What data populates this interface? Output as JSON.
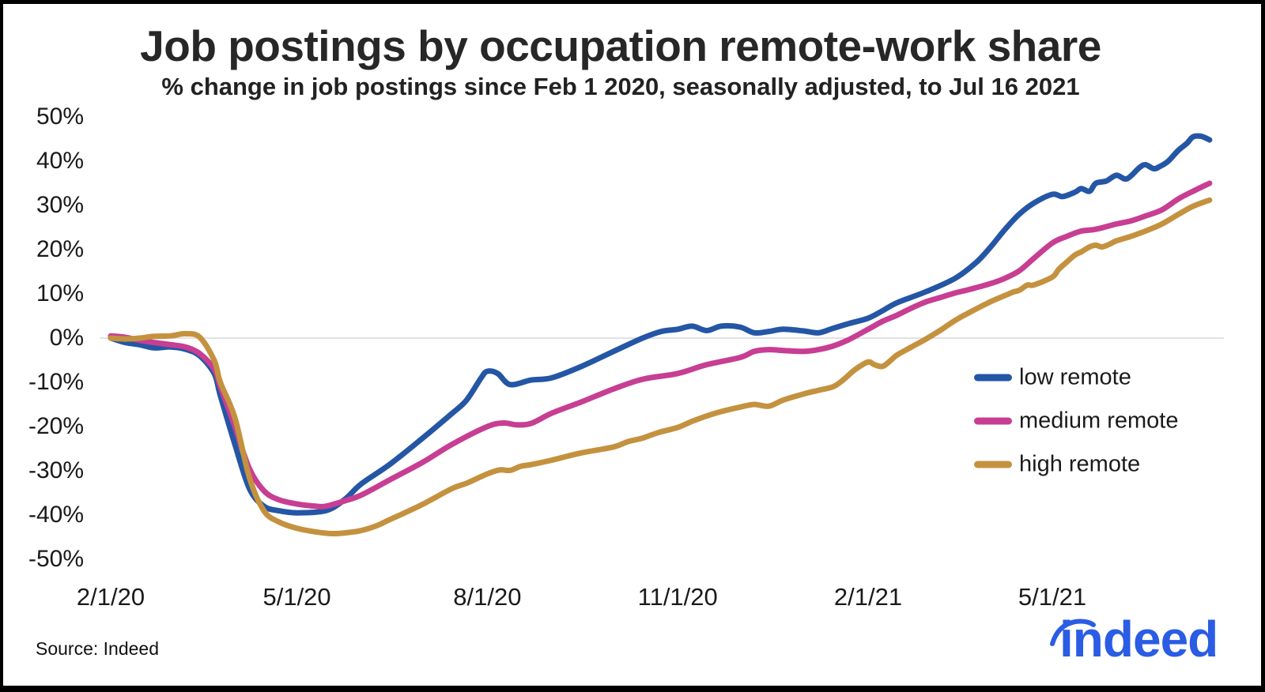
{
  "title": "Job postings by occupation remote-work share",
  "subtitle": "% change in job postings since Feb 1 2020, seasonally adjusted, to Jul 16 2021",
  "source": "Source: Indeed",
  "logo": {
    "text": "indeed",
    "color": "#2a5ce4"
  },
  "frame": {
    "border_color": "#000000",
    "background": "#ffffff"
  },
  "chart_data": {
    "type": "line",
    "title": "Job postings by occupation remote-work share",
    "subtitle": "% change in job postings since Feb 1 2020, seasonally adjusted, to Jul 16 2021",
    "x_unit": "days since Feb 1 2020",
    "xlim_days": [
      0,
      531
    ],
    "ylim": [
      -50,
      50
    ],
    "y_ticks": [
      50,
      40,
      30,
      20,
      10,
      0,
      -10,
      -20,
      -30,
      -40,
      -50
    ],
    "y_tick_suffix": "%",
    "x_ticks": [
      {
        "label": "2/1/20",
        "day": 0
      },
      {
        "label": "5/1/20",
        "day": 90
      },
      {
        "label": "8/1/20",
        "day": 182
      },
      {
        "label": "11/1/20",
        "day": 274
      },
      {
        "label": "2/1/21",
        "day": 366
      },
      {
        "label": "5/1/21",
        "day": 455
      }
    ],
    "grid": "zero-line-only",
    "zero_line_color": "#d8d8d8",
    "legend_position": "middle-right",
    "series": [
      {
        "name": "low remote",
        "color": "#2456a5",
        "points": [
          [
            0,
            0
          ],
          [
            7,
            -1
          ],
          [
            14,
            -1.5
          ],
          [
            21,
            -2.2
          ],
          [
            29,
            -2
          ],
          [
            36,
            -2.5
          ],
          [
            43,
            -4
          ],
          [
            50,
            -8
          ],
          [
            53,
            -13
          ],
          [
            60,
            -24
          ],
          [
            67,
            -34
          ],
          [
            74,
            -38
          ],
          [
            81,
            -39
          ],
          [
            90,
            -39.5
          ],
          [
            104,
            -39
          ],
          [
            113,
            -36.5
          ],
          [
            121,
            -33
          ],
          [
            135,
            -28.5
          ],
          [
            151,
            -22.5
          ],
          [
            165,
            -17
          ],
          [
            172,
            -14
          ],
          [
            179,
            -9
          ],
          [
            182,
            -7.5
          ],
          [
            187,
            -8
          ],
          [
            193,
            -10.5
          ],
          [
            203,
            -9.5
          ],
          [
            213,
            -9
          ],
          [
            227,
            -6.5
          ],
          [
            243,
            -3
          ],
          [
            257,
            0
          ],
          [
            266,
            1.5
          ],
          [
            274,
            2
          ],
          [
            281,
            2.7
          ],
          [
            288,
            1.7
          ],
          [
            295,
            2.7
          ],
          [
            304,
            2.5
          ],
          [
            311,
            1.2
          ],
          [
            318,
            1.5
          ],
          [
            325,
            2
          ],
          [
            335,
            1.6
          ],
          [
            342,
            1.2
          ],
          [
            349,
            2.2
          ],
          [
            356,
            3.2
          ],
          [
            366,
            4.5
          ],
          [
            373,
            6.2
          ],
          [
            380,
            8
          ],
          [
            394,
            10.5
          ],
          [
            408,
            13.5
          ],
          [
            418,
            17
          ],
          [
            425,
            20.5
          ],
          [
            432,
            24.5
          ],
          [
            439,
            28
          ],
          [
            446,
            30.5
          ],
          [
            455,
            32.5
          ],
          [
            460,
            32
          ],
          [
            466,
            33
          ],
          [
            469,
            33.8
          ],
          [
            473,
            33.2
          ],
          [
            476,
            35
          ],
          [
            481,
            35.5
          ],
          [
            486,
            36.8
          ],
          [
            491,
            36
          ],
          [
            497,
            38.5
          ],
          [
            500,
            39.2
          ],
          [
            504,
            38.3
          ],
          [
            507,
            38.8
          ],
          [
            511,
            40
          ],
          [
            516,
            42.5
          ],
          [
            520,
            44
          ],
          [
            523,
            45.5
          ],
          [
            527,
            45.6
          ],
          [
            531,
            44.8
          ]
        ]
      },
      {
        "name": "medium remote",
        "color": "#c73e93",
        "points": [
          [
            0,
            0.5
          ],
          [
            7,
            0.2
          ],
          [
            14,
            -0.5
          ],
          [
            21,
            -1
          ],
          [
            29,
            -1.5
          ],
          [
            36,
            -2
          ],
          [
            43,
            -3.5
          ],
          [
            50,
            -7
          ],
          [
            53,
            -11
          ],
          [
            60,
            -20
          ],
          [
            67,
            -29.5
          ],
          [
            74,
            -34.5
          ],
          [
            81,
            -36.5
          ],
          [
            90,
            -37.5
          ],
          [
            99,
            -38
          ],
          [
            104,
            -38
          ],
          [
            113,
            -36.8
          ],
          [
            121,
            -35.5
          ],
          [
            135,
            -32
          ],
          [
            151,
            -28
          ],
          [
            165,
            -24
          ],
          [
            182,
            -20
          ],
          [
            190,
            -19.2
          ],
          [
            196,
            -19.6
          ],
          [
            203,
            -19.3
          ],
          [
            213,
            -17
          ],
          [
            227,
            -14.5
          ],
          [
            243,
            -11.5
          ],
          [
            257,
            -9.3
          ],
          [
            274,
            -8
          ],
          [
            288,
            -6
          ],
          [
            304,
            -4.4
          ],
          [
            311,
            -3
          ],
          [
            318,
            -2.6
          ],
          [
            325,
            -2.8
          ],
          [
            335,
            -3
          ],
          [
            342,
            -2.6
          ],
          [
            349,
            -1.8
          ],
          [
            356,
            -0.5
          ],
          [
            366,
            2
          ],
          [
            373,
            3.8
          ],
          [
            380,
            5.2
          ],
          [
            387,
            6.8
          ],
          [
            394,
            8.2
          ],
          [
            401,
            9.2
          ],
          [
            408,
            10.2
          ],
          [
            415,
            11
          ],
          [
            425,
            12.3
          ],
          [
            432,
            13.5
          ],
          [
            439,
            15.2
          ],
          [
            446,
            18
          ],
          [
            455,
            21.5
          ],
          [
            462,
            23
          ],
          [
            469,
            24.2
          ],
          [
            476,
            24.6
          ],
          [
            486,
            25.8
          ],
          [
            493,
            26.5
          ],
          [
            500,
            27.6
          ],
          [
            508,
            29
          ],
          [
            516,
            31.5
          ],
          [
            523,
            33.2
          ],
          [
            531,
            35
          ]
        ]
      },
      {
        "name": "high remote",
        "color": "#c4923f",
        "points": [
          [
            0,
            0
          ],
          [
            7,
            -0.2
          ],
          [
            14,
            0
          ],
          [
            21,
            0.4
          ],
          [
            29,
            0.5
          ],
          [
            36,
            1
          ],
          [
            43,
            0.2
          ],
          [
            50,
            -5
          ],
          [
            53,
            -10
          ],
          [
            60,
            -18
          ],
          [
            67,
            -31.5
          ],
          [
            74,
            -39
          ],
          [
            81,
            -41.5
          ],
          [
            90,
            -43
          ],
          [
            99,
            -43.8
          ],
          [
            107,
            -44.2
          ],
          [
            114,
            -44
          ],
          [
            121,
            -43.5
          ],
          [
            128,
            -42.5
          ],
          [
            135,
            -41
          ],
          [
            143,
            -39.3
          ],
          [
            151,
            -37.5
          ],
          [
            165,
            -34
          ],
          [
            172,
            -32.8
          ],
          [
            182,
            -30.7
          ],
          [
            188,
            -29.8
          ],
          [
            193,
            -29.9
          ],
          [
            198,
            -29
          ],
          [
            203,
            -28.6
          ],
          [
            213,
            -27.6
          ],
          [
            227,
            -26
          ],
          [
            243,
            -24.6
          ],
          [
            250,
            -23.4
          ],
          [
            257,
            -22.6
          ],
          [
            265,
            -21.3
          ],
          [
            274,
            -20.2
          ],
          [
            281,
            -18.8
          ],
          [
            288,
            -17.6
          ],
          [
            295,
            -16.6
          ],
          [
            304,
            -15.6
          ],
          [
            311,
            -15
          ],
          [
            318,
            -15.4
          ],
          [
            325,
            -14
          ],
          [
            335,
            -12.6
          ],
          [
            342,
            -11.8
          ],
          [
            349,
            -11
          ],
          [
            353,
            -9.8
          ],
          [
            356,
            -8.6
          ],
          [
            360,
            -7
          ],
          [
            366,
            -5.4
          ],
          [
            369,
            -6
          ],
          [
            373,
            -6.4
          ],
          [
            377,
            -5
          ],
          [
            380,
            -3.8
          ],
          [
            387,
            -2
          ],
          [
            394,
            -0.2
          ],
          [
            401,
            1.8
          ],
          [
            408,
            4
          ],
          [
            415,
            5.8
          ],
          [
            425,
            8.2
          ],
          [
            432,
            9.6
          ],
          [
            436,
            10.4
          ],
          [
            439,
            10.8
          ],
          [
            443,
            12
          ],
          [
            446,
            12
          ],
          [
            455,
            13.8
          ],
          [
            458,
            15.5
          ],
          [
            462,
            17.2
          ],
          [
            466,
            18.8
          ],
          [
            469,
            19.5
          ],
          [
            473,
            20.6
          ],
          [
            476,
            21
          ],
          [
            479,
            20.6
          ],
          [
            483,
            21.3
          ],
          [
            486,
            22
          ],
          [
            493,
            23
          ],
          [
            500,
            24.2
          ],
          [
            508,
            25.8
          ],
          [
            516,
            28
          ],
          [
            523,
            29.8
          ],
          [
            531,
            31.2
          ]
        ]
      }
    ]
  }
}
